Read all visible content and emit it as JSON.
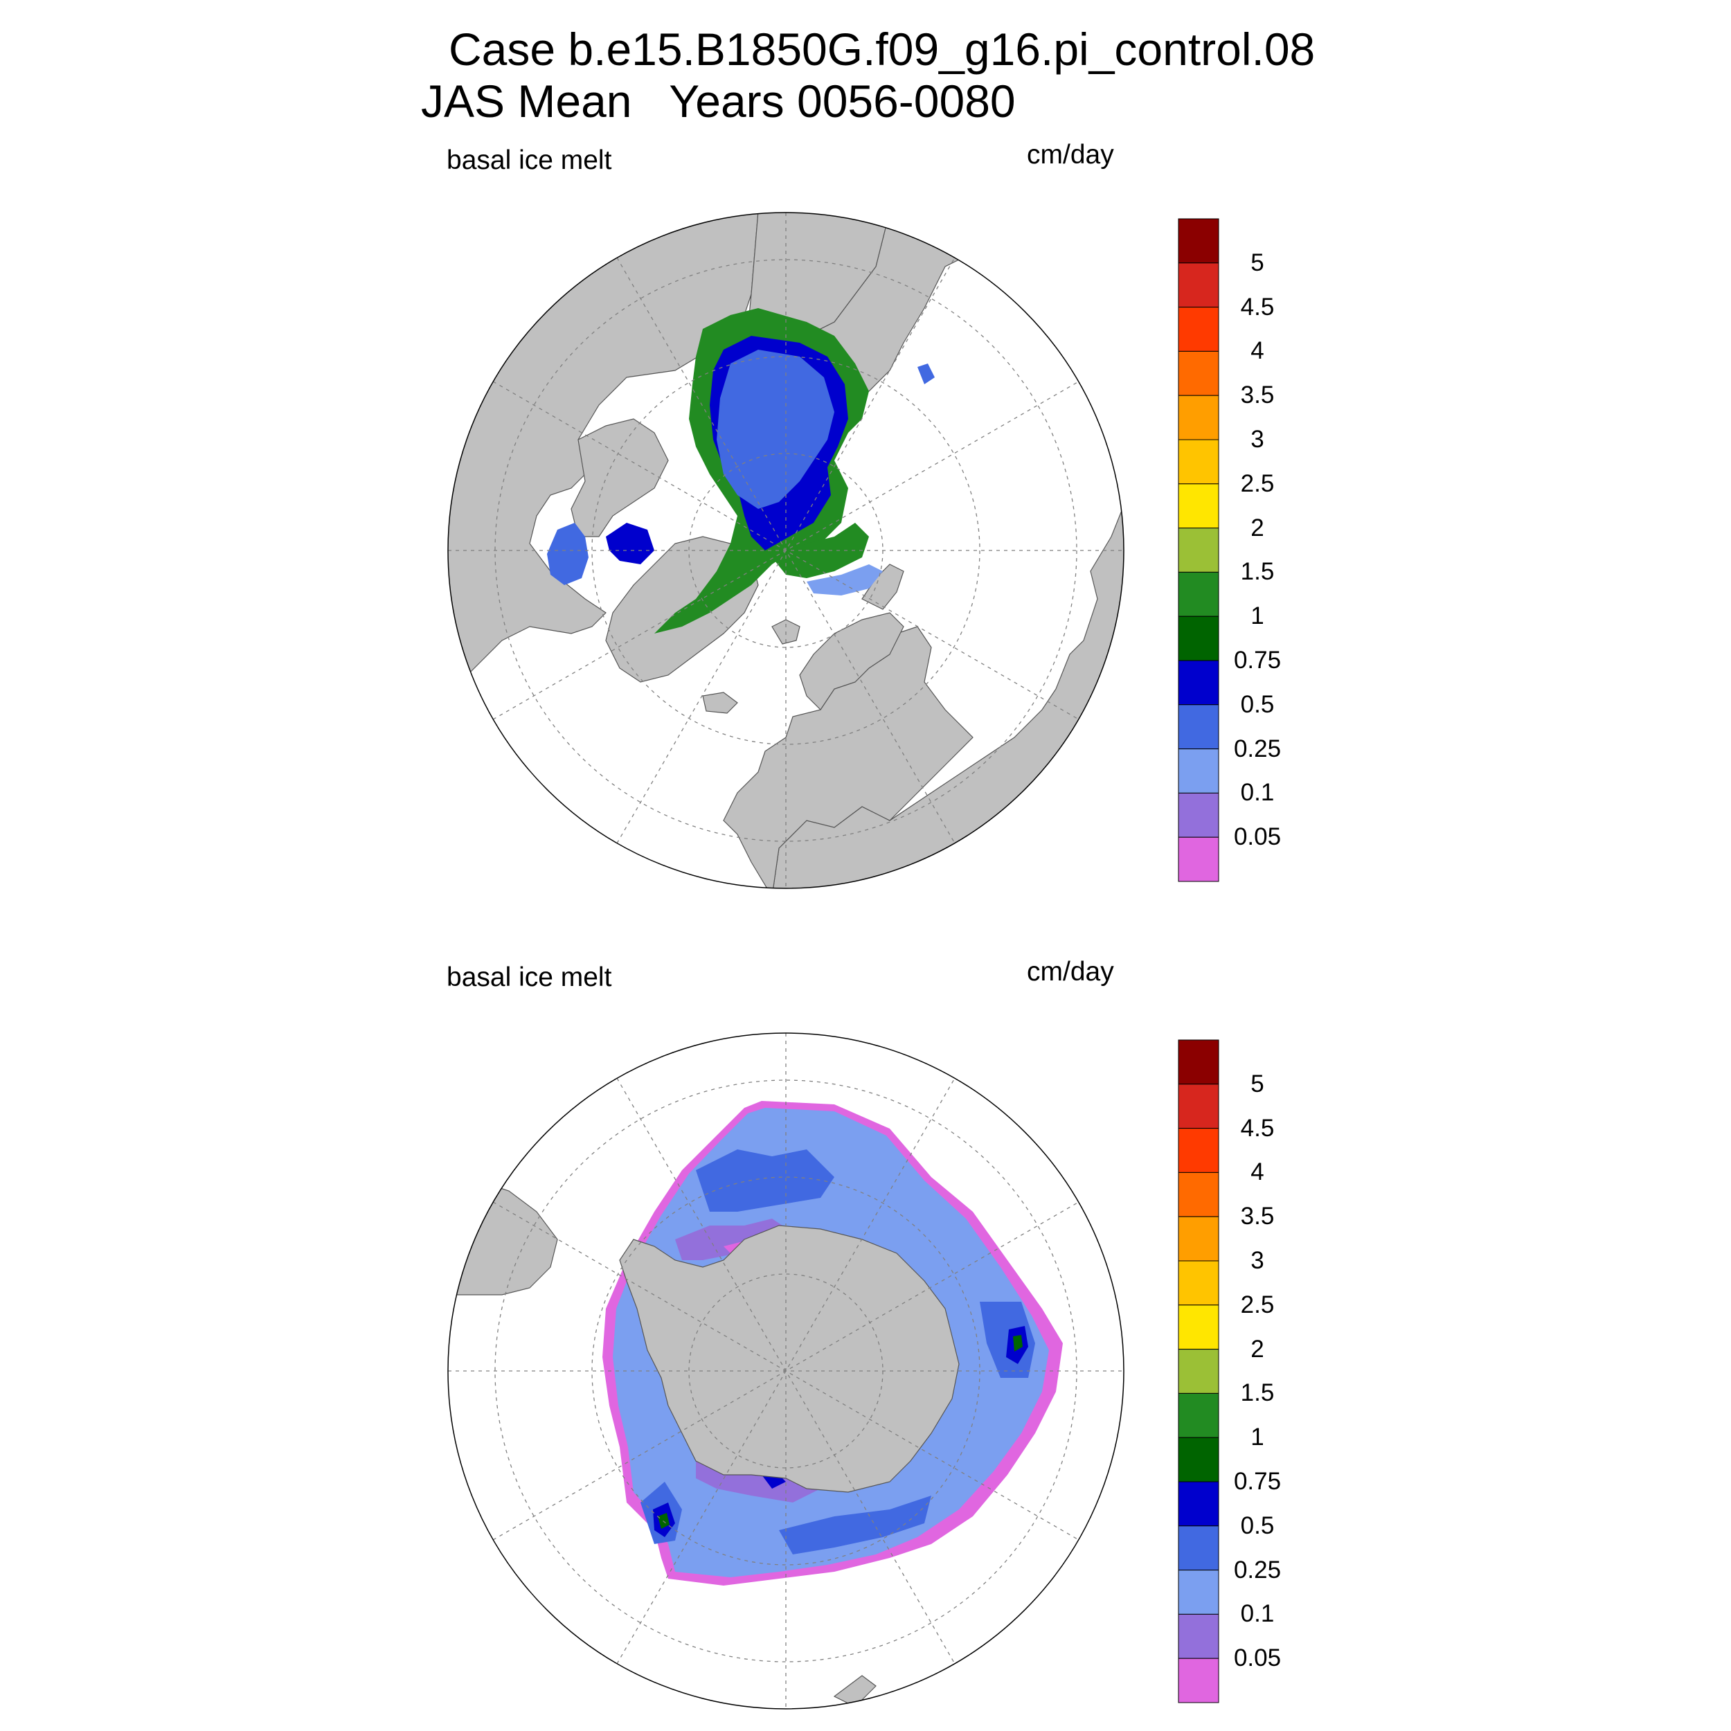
{
  "title_line1": "Case b.e15.B1850G.f09_g16.pi_control.08",
  "title_line2": "JAS Mean   Years 0056-0080",
  "panels": [
    {
      "id": "north",
      "left_label": "basal ice melt",
      "right_label": "cm/day",
      "hemisphere": "Northern Hemisphere polar stereographic"
    },
    {
      "id": "south",
      "left_label": "basal ice melt",
      "right_label": "cm/day",
      "hemisphere": "Southern Hemisphere polar stereographic"
    }
  ],
  "colorbar": {
    "labels": [
      "5",
      "4.5",
      "4",
      "3.5",
      "3",
      "2.5",
      "2",
      "1.5",
      "1",
      "0.75",
      "0.5",
      "0.25",
      "0.1",
      "0.05"
    ],
    "colors_top_to_bottom": [
      "#8b0000",
      "#d7261e",
      "#ff3a00",
      "#ff6a00",
      "#ff9e00",
      "#ffc400",
      "#ffe600",
      "#9bc036",
      "#228b22",
      "#006400",
      "#0000cd",
      "#4169e1",
      "#7b9ff0",
      "#9370db",
      "#e066e0"
    ]
  },
  "colors": {
    "land": "#c0c0c0",
    "ocean": "#ffffff",
    "grid": "#808080"
  }
}
